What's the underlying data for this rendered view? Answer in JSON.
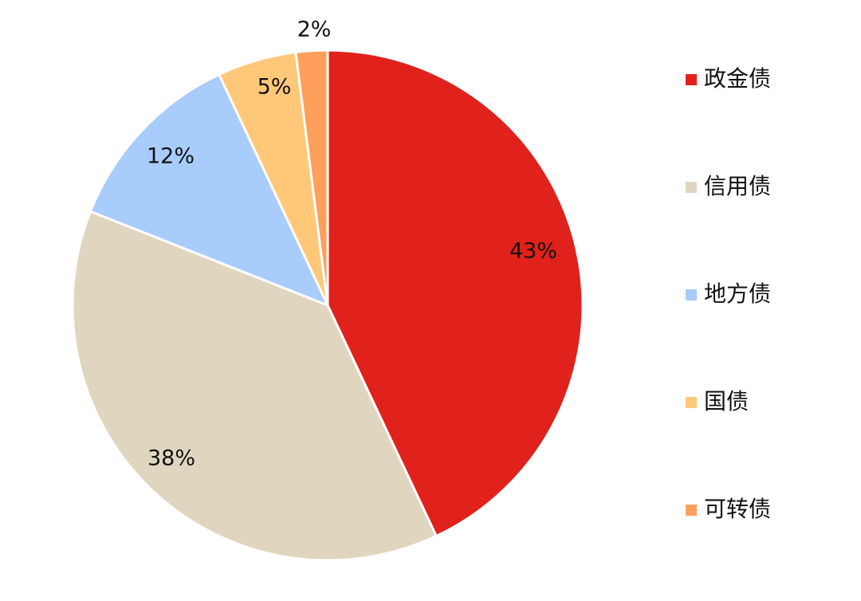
{
  "chart_data": {
    "type": "pie",
    "categories": [
      "政金债",
      "信用债",
      "地方债",
      "国债",
      "可转债"
    ],
    "values": [
      43,
      38,
      12,
      5,
      2
    ],
    "value_labels": [
      "43%",
      "38%",
      "12%",
      "5%",
      "2%"
    ],
    "unit": "%",
    "colors": [
      "#e1211b",
      "#e0d6bf",
      "#a8ccfc",
      "#ffc878",
      "#ff9f5c"
    ],
    "start_angle": "12 o'clock",
    "direction": "clockwise",
    "legend_position": "right",
    "title": ""
  }
}
